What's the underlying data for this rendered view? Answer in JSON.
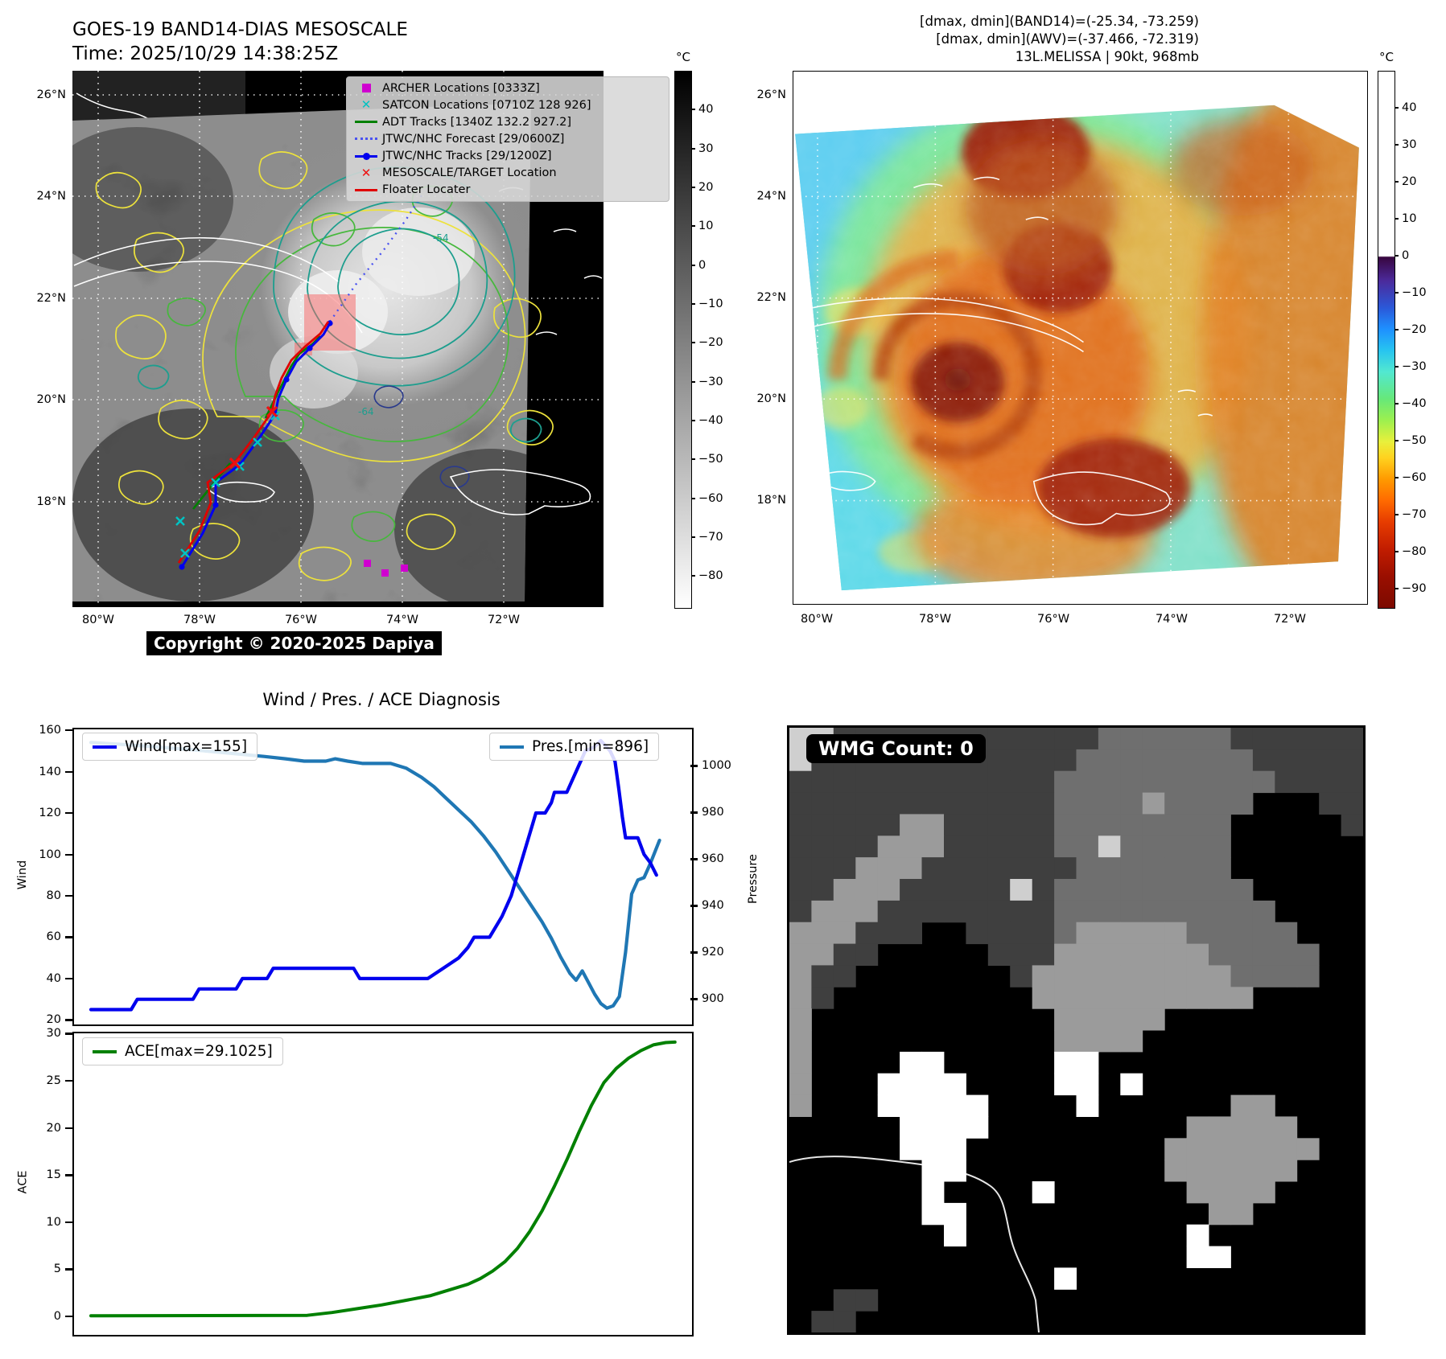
{
  "header": {
    "title": "GOES-19 BAND14-DIAS MESOSCALE",
    "time_line": "Time: 2025/10/29 14:38:25Z",
    "right_line1": "[dmax, dmin](BAND14)=(-25.34, -73.259)",
    "right_line2": "[dmax, dmin](AWV)=(-37.466, -72.319)",
    "right_line3": "13L.MELISSA | 90kt, 968mb"
  },
  "map_ir": {
    "copyright": "Copyright © 2020-2025 Dapiya",
    "lat_ticks": [
      "26°N",
      "24°N",
      "22°N",
      "20°N",
      "18°N"
    ],
    "lon_ticks": [
      "80°W",
      "78°W",
      "76°W",
      "74°W",
      "72°W"
    ],
    "colorbar": {
      "unit": "°C",
      "ticks": [
        40,
        30,
        20,
        10,
        0,
        -10,
        -20,
        -30,
        -40,
        -50,
        -60,
        -70,
        -80
      ],
      "range": [
        50,
        -88
      ]
    },
    "contour_labels": [
      {
        "text": "-64"
      },
      {
        "text": "-54"
      }
    ],
    "legend_items": [
      {
        "name": "archer-locations",
        "marker": "square",
        "color": "#cf00cf",
        "label": "ARCHER Locations [0333Z]"
      },
      {
        "name": "satcon-locations",
        "marker": "xmark",
        "color": "#00c2c2",
        "label": "SATCON Locations [0710Z 128 926]"
      },
      {
        "name": "adt-tracks",
        "marker": "line",
        "color": "#008000",
        "label": "ADT Tracks [1340Z 132.2 927.2]"
      },
      {
        "name": "jtwc-forecast",
        "marker": "dotted",
        "color": "#4a52f0",
        "label": "JTWC/NHC Forecast [29/0600Z]"
      },
      {
        "name": "jtwc-tracks",
        "marker": "line-dot",
        "color": "#0000ee",
        "label": "JTWC/NHC Tracks [29/1200Z]"
      },
      {
        "name": "mesoscale-target",
        "marker": "xmark",
        "color": "#ee1010",
        "label": "MESOSCALE/TARGET Location"
      },
      {
        "name": "floater-locater",
        "marker": "line",
        "color": "#e00000",
        "label": "Floater Locater"
      }
    ]
  },
  "map_awv": {
    "lat_ticks": [
      "26°N",
      "24°N",
      "22°N",
      "20°N",
      "18°N"
    ],
    "lon_ticks": [
      "80°W",
      "78°W",
      "76°W",
      "74°W",
      "72°W"
    ],
    "colorbar": {
      "unit": "°C",
      "ticks": [
        40,
        30,
        20,
        10,
        0,
        -10,
        -20,
        -30,
        -40,
        -50,
        -60,
        -70,
        -80,
        -90
      ],
      "range": [
        50,
        -95
      ]
    }
  },
  "diagnosis": {
    "title": "Wind / Pres. / ACE Diagnosis",
    "wind_axis_label": "Wind",
    "pressure_axis_label": "Pressure",
    "ace_axis_label": "ACE",
    "wind_legend": "Wind[max=155]",
    "pres_legend": "Pres.[min=896]",
    "ace_legend": "ACE[max=29.1025]",
    "wind_color": "#0000ee",
    "pres_color": "#1f77b4",
    "ace_color": "#008000",
    "wind_ticks": [
      160,
      140,
      120,
      100,
      80,
      60,
      40,
      20
    ],
    "pressure_ticks": [
      1000,
      980,
      960,
      940,
      920,
      900
    ],
    "ace_ticks": [
      30,
      25,
      20,
      15,
      10,
      5,
      0
    ]
  },
  "wmg": {
    "label": "WMG Count: 0",
    "palette": {
      "K": "#000000",
      "D": "#3f3f3f",
      "M": "#6f6f6f",
      "G": "#9b9b9b",
      "L": "#cfcfcf",
      "W": "#ffffff"
    },
    "grid_rows": [
      "LLDDDDDDDDDDDDMMMMMMDDDDDD",
      "LDDDDDDDDDDDDMMMMMMMMDDDDD",
      "DDDDDDDDDDDDMMMMMMMMMMDDDD",
      "DDDDDDDDDDDDMMMMGMMMMKKKDD",
      "DDDDDGGDDDDDMMMMMMMMKKKKKD",
      "DDDDGGGDDDDDMMLMMMMMKKKKKK",
      "DDDGGGDDDDDDDMMMMMMMKKKKKK",
      "DDGGGDDDDDLDMMMMMMMMMKKKKK",
      "DGGGDDDDDDDDMMMMMMMMMMKKKK",
      "GGGDDDKKDDDDMGGGGGMMMMMKKK",
      "GGDDKKKKKDDDGGGGGGGMMMMMKK",
      "GDDKKKKKKKDGGGGGGGGGMMMMKK",
      "GDKKKKKKKKKGGGGGGGGGGKKKKK",
      "GKKKKKKKKKKKGGGGGKKKKKKKKK",
      "GKKKKKKKKKKKGGGGKKKKKKKKKK",
      "GKKKKWWKKKKKWWKKKKKKKKKKKK",
      "GKKKWWWWKKKKWWKWKKKKKKKKKK",
      "GKKKWWWWWKKKKWKKKKKKGGKKKK",
      "KKKKKWWWWKKKKKKKKKGGGGGKKK",
      "KKKKKWWWKKKKKKKKKGGGGGGGKK",
      "KKKKKKWWKKKKKKKKKGGGGGGKKK",
      "KKKKKKWKKKKWKKKKKKGGGGKKKK",
      "KKKKKKWWKKKKKKKKKKKGGKKKKK",
      "KKKKKKKWKKKKKKKKKKWKKKKKKK",
      "KKKKKKKKKKKKKKKKKKWWKKKKKK",
      "KKKKKKKKKKKKWKKKKKKKKKKKKK",
      "KKDDKKKKKKKKKKKKKKKKKKKKKK",
      "KDDKKKKKKKKKKKKKKKKKKKKKKK"
    ]
  },
  "chart_data": [
    {
      "type": "line",
      "title": "Wind / Pres. / ACE Diagnosis",
      "ylabel_left": "Wind",
      "ylabel_right": "Pressure",
      "ylim_left": [
        18.6,
        161.2
      ],
      "ylim_right": [
        889.7,
        1016.3
      ],
      "legend_position": "upper-left / upper-right",
      "grid": false,
      "series": [
        {
          "name": "Wind[max=155]",
          "color": "#0000ee",
          "axis": "left",
          "points": [
            [
              0.03,
              25
            ],
            [
              0.095,
              25
            ],
            [
              0.105,
              30
            ],
            [
              0.195,
              30
            ],
            [
              0.205,
              35
            ],
            [
              0.265,
              35
            ],
            [
              0.275,
              40
            ],
            [
              0.315,
              40
            ],
            [
              0.325,
              45
            ],
            [
              0.455,
              45
            ],
            [
              0.465,
              40
            ],
            [
              0.575,
              40
            ],
            [
              0.6,
              45
            ],
            [
              0.625,
              50
            ],
            [
              0.64,
              55
            ],
            [
              0.65,
              60
            ],
            [
              0.675,
              60
            ],
            [
              0.695,
              70
            ],
            [
              0.71,
              80
            ],
            [
              0.725,
              95
            ],
            [
              0.735,
              105
            ],
            [
              0.745,
              115
            ],
            [
              0.75,
              120
            ],
            [
              0.765,
              120
            ],
            [
              0.775,
              125
            ],
            [
              0.78,
              130
            ],
            [
              0.8,
              130
            ],
            [
              0.815,
              140
            ],
            [
              0.83,
              150
            ],
            [
              0.845,
              152
            ],
            [
              0.855,
              155
            ],
            [
              0.87,
              150
            ],
            [
              0.878,
              145
            ],
            [
              0.884,
              132
            ],
            [
              0.89,
              118
            ],
            [
              0.895,
              108
            ],
            [
              0.915,
              108
            ],
            [
              0.925,
              100
            ],
            [
              0.935,
              96
            ],
            [
              0.945,
              90
            ]
          ]
        },
        {
          "name": "Pres.[min=896]",
          "color": "#1f77b4",
          "axis": "right",
          "points": [
            [
              0.03,
              1010
            ],
            [
              0.09,
              1009
            ],
            [
              0.14,
              1008
            ],
            [
              0.19,
              1007
            ],
            [
              0.23,
              1006
            ],
            [
              0.27,
              1005
            ],
            [
              0.31,
              1004
            ],
            [
              0.345,
              1003
            ],
            [
              0.375,
              1002
            ],
            [
              0.41,
              1002
            ],
            [
              0.425,
              1003
            ],
            [
              0.445,
              1002
            ],
            [
              0.47,
              1001
            ],
            [
              0.515,
              1001
            ],
            [
              0.54,
              999
            ],
            [
              0.565,
              995
            ],
            [
              0.585,
              991
            ],
            [
              0.605,
              986
            ],
            [
              0.625,
              981
            ],
            [
              0.645,
              976
            ],
            [
              0.665,
              970
            ],
            [
              0.685,
              963
            ],
            [
              0.7,
              957
            ],
            [
              0.715,
              951
            ],
            [
              0.73,
              945
            ],
            [
              0.745,
              939
            ],
            [
              0.76,
              933
            ],
            [
              0.775,
              926
            ],
            [
              0.79,
              918
            ],
            [
              0.805,
              911
            ],
            [
              0.815,
              908
            ],
            [
              0.825,
              912
            ],
            [
              0.835,
              907
            ],
            [
              0.845,
              902
            ],
            [
              0.855,
              898
            ],
            [
              0.865,
              896
            ],
            [
              0.875,
              897
            ],
            [
              0.885,
              901
            ],
            [
              0.895,
              920
            ],
            [
              0.905,
              945
            ],
            [
              0.915,
              951
            ],
            [
              0.925,
              952
            ],
            [
              0.935,
              958
            ],
            [
              0.95,
              968
            ]
          ]
        }
      ]
    },
    {
      "type": "line",
      "ylabel": "ACE",
      "ylim": [
        -1.8,
        30.2
      ],
      "grid": false,
      "series": [
        {
          "name": "ACE[max=29.1025]",
          "color": "#008000",
          "points": [
            [
              0.03,
              0.05
            ],
            [
              0.38,
              0.1
            ],
            [
              0.42,
              0.4
            ],
            [
              0.46,
              0.8
            ],
            [
              0.5,
              1.2
            ],
            [
              0.54,
              1.7
            ],
            [
              0.58,
              2.2
            ],
            [
              0.61,
              2.8
            ],
            [
              0.64,
              3.4
            ],
            [
              0.66,
              4.0
            ],
            [
              0.68,
              4.8
            ],
            [
              0.7,
              5.8
            ],
            [
              0.72,
              7.2
            ],
            [
              0.74,
              9.0
            ],
            [
              0.76,
              11.2
            ],
            [
              0.78,
              13.8
            ],
            [
              0.8,
              16.6
            ],
            [
              0.82,
              19.6
            ],
            [
              0.84,
              22.4
            ],
            [
              0.86,
              24.8
            ],
            [
              0.88,
              26.3
            ],
            [
              0.9,
              27.4
            ],
            [
              0.92,
              28.2
            ],
            [
              0.94,
              28.8
            ],
            [
              0.96,
              29.05
            ],
            [
              0.975,
              29.1
            ]
          ]
        }
      ]
    },
    {
      "type": "heatmap",
      "title": "GOES-19 BAND14 IR image with contours and track overlays",
      "colorbar_unit": "°C",
      "colorbar_ticks": [
        40,
        30,
        20,
        10,
        0,
        -10,
        -20,
        -30,
        -40,
        -50,
        -60,
        -70,
        -80
      ],
      "x_ticks": [
        "80°W",
        "78°W",
        "76°W",
        "74°W",
        "72°W"
      ],
      "y_ticks": [
        "26°N",
        "24°N",
        "22°N",
        "20°N",
        "18°N"
      ]
    },
    {
      "type": "heatmap",
      "title": "AWV colorized satellite image",
      "colorbar_unit": "°C",
      "colorbar_ticks": [
        40,
        30,
        20,
        10,
        0,
        -10,
        -20,
        -30,
        -40,
        -50,
        -60,
        -70,
        -80,
        -90
      ],
      "x_ticks": [
        "80°W",
        "78°W",
        "76°W",
        "74°W",
        "72°W"
      ],
      "y_ticks": [
        "26°N",
        "24°N",
        "22°N",
        "20°N",
        "18°N"
      ]
    }
  ]
}
